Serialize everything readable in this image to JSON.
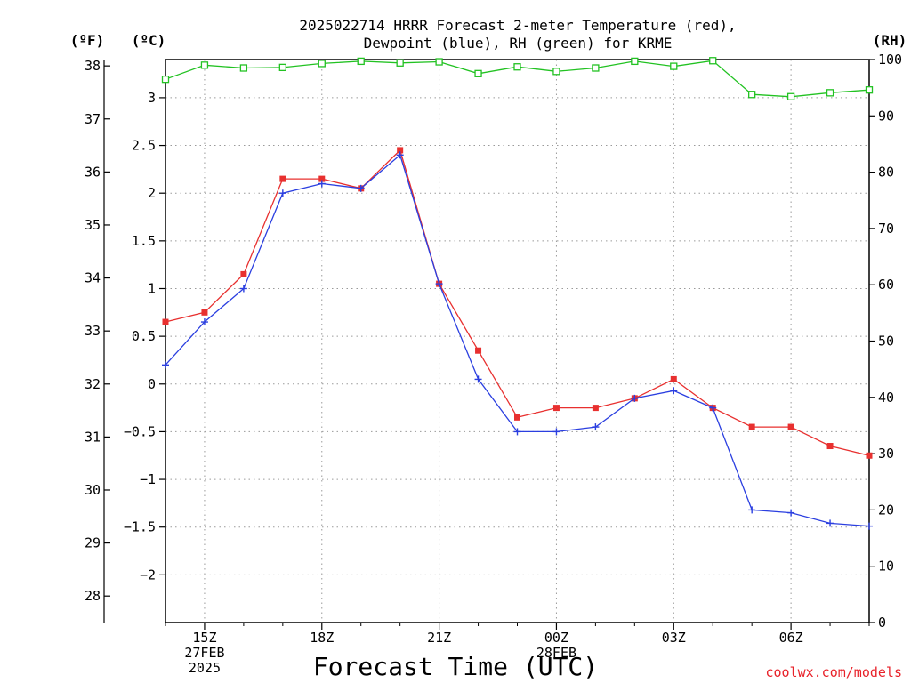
{
  "chart_data": {
    "type": "line",
    "title_lines": [
      "2025022714 HRRR Forecast 2-meter Temperature (red),",
      "Dewpoint (blue), RH (green) for KRME"
    ],
    "xlabel": "Forecast Time (UTC)",
    "left_outer_unit": "(ºF)",
    "left_inner_unit": "(ºC)",
    "right_unit": "(RH)",
    "watermark": "coolwx.com/models",
    "x": [
      14,
      15,
      16,
      17,
      18,
      19,
      20,
      21,
      22,
      23,
      24,
      25,
      26,
      27,
      28,
      29,
      30,
      31,
      32
    ],
    "x_range": [
      14,
      32
    ],
    "x_ticks": [
      {
        "x": 15,
        "lines": [
          "15Z",
          "27FEB",
          "2025"
        ]
      },
      {
        "x": 18,
        "lines": [
          "18Z"
        ]
      },
      {
        "x": 21,
        "lines": [
          "21Z"
        ]
      },
      {
        "x": 24,
        "lines": [
          "00Z",
          "28FEB"
        ]
      },
      {
        "x": 27,
        "lines": [
          "03Z"
        ]
      },
      {
        "x": 30,
        "lines": [
          "06Z"
        ]
      }
    ],
    "y_celsius": {
      "range": [
        -2.5,
        3.4
      ],
      "ticks": [
        3,
        2.5,
        2,
        1.5,
        1,
        0.5,
        0,
        -0.5,
        -1,
        -1.5,
        -2
      ],
      "tick_labels": [
        "3",
        "2.5",
        "2",
        "1.5",
        "1",
        "0.5",
        "0",
        "−0.5",
        "−1",
        "−1.5",
        "−2"
      ]
    },
    "y_fahrenheit": {
      "ticks": [
        38,
        37,
        36,
        35,
        34,
        33,
        32,
        31,
        30,
        29,
        28
      ],
      "tick_labels": [
        "38",
        "37",
        "36",
        "35",
        "34",
        "33",
        "32",
        "31",
        "30",
        "29",
        "28"
      ]
    },
    "y_rh": {
      "range": [
        0,
        100
      ],
      "ticks": [
        100,
        90,
        80,
        70,
        60,
        50,
        40,
        30,
        20,
        10,
        0
      ],
      "tick_labels": [
        "100",
        "90",
        "80",
        "70",
        "60",
        "50",
        "40",
        "30",
        "20",
        "10",
        "0"
      ]
    },
    "grid": true,
    "series": [
      {
        "key": "temperature",
        "axis": "celsius",
        "color": "#e8302f",
        "marker": "filled-square",
        "values": [
          0.65,
          0.75,
          1.15,
          2.15,
          2.15,
          2.05,
          2.45,
          1.05,
          0.35,
          -0.35,
          -0.25,
          -0.25,
          -0.15,
          0.05,
          -0.25,
          -0.45,
          -0.45,
          -0.65,
          -0.75
        ]
      },
      {
        "key": "dewpoint",
        "axis": "celsius",
        "color": "#2b3fe0",
        "marker": "plus",
        "values": [
          0.2,
          0.65,
          1.0,
          2.0,
          2.1,
          2.05,
          2.4,
          1.05,
          0.05,
          -0.5,
          -0.5,
          -0.45,
          -0.15,
          -0.07,
          -0.25,
          -1.32,
          -1.35,
          -1.46,
          -1.49
        ]
      },
      {
        "key": "rh",
        "axis": "rh",
        "color": "#22c222",
        "marker": "open-square",
        "values": [
          96.5,
          99.0,
          98.5,
          98.6,
          99.3,
          99.7,
          99.4,
          99.6,
          97.5,
          98.7,
          97.9,
          98.5,
          99.7,
          98.8,
          99.8,
          93.8,
          93.4,
          94.1,
          94.6
        ]
      }
    ]
  }
}
